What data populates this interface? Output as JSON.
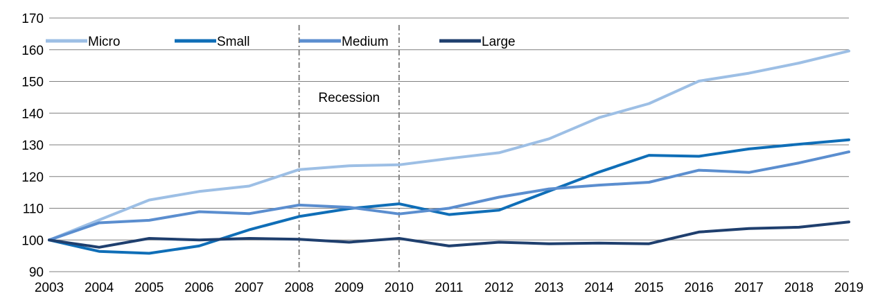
{
  "chart_data": {
    "type": "line",
    "x": [
      "2003",
      "2004",
      "2005",
      "2006",
      "2007",
      "2008",
      "2009",
      "2010",
      "2011",
      "2012",
      "2013",
      "2014",
      "2015",
      "2016",
      "2017",
      "2018",
      "2019"
    ],
    "ylim": [
      90,
      170
    ],
    "yticks": [
      90,
      100,
      110,
      120,
      130,
      140,
      150,
      160,
      170
    ],
    "grid": true,
    "legend_position": "top",
    "series": [
      {
        "name": "Micro",
        "color": "#9DBFE5",
        "values": [
          100,
          106.3,
          112.6,
          115.3,
          117.0,
          122.2,
          123.4,
          123.7,
          125.7,
          127.5,
          131.9,
          138.6,
          143.0,
          150.1,
          152.6,
          155.8,
          159.6
        ]
      },
      {
        "name": "Small",
        "color": "#0F6EB7",
        "values": [
          100,
          96.4,
          95.8,
          98.1,
          103.2,
          107.4,
          109.9,
          111.4,
          108.0,
          109.4,
          115.4,
          121.4,
          126.7,
          126.4,
          128.7,
          130.2,
          131.6
        ]
      },
      {
        "name": "Medium",
        "color": "#5B8ECF",
        "values": [
          100,
          105.4,
          106.2,
          108.9,
          108.3,
          111.0,
          110.3,
          108.2,
          110.0,
          113.5,
          116.1,
          117.3,
          118.2,
          122.0,
          121.3,
          124.3,
          127.8
        ]
      },
      {
        "name": "Large",
        "color": "#1F3F6E",
        "values": [
          100,
          97.7,
          100.5,
          100.0,
          100.5,
          100.2,
          99.3,
          100.5,
          98.1,
          99.3,
          98.8,
          99.0,
          98.8,
          102.5,
          103.6,
          104.0,
          105.7
        ]
      }
    ],
    "recession": {
      "label": "Recession",
      "start": "2008",
      "end": "2010",
      "line_color": "#808080"
    }
  }
}
